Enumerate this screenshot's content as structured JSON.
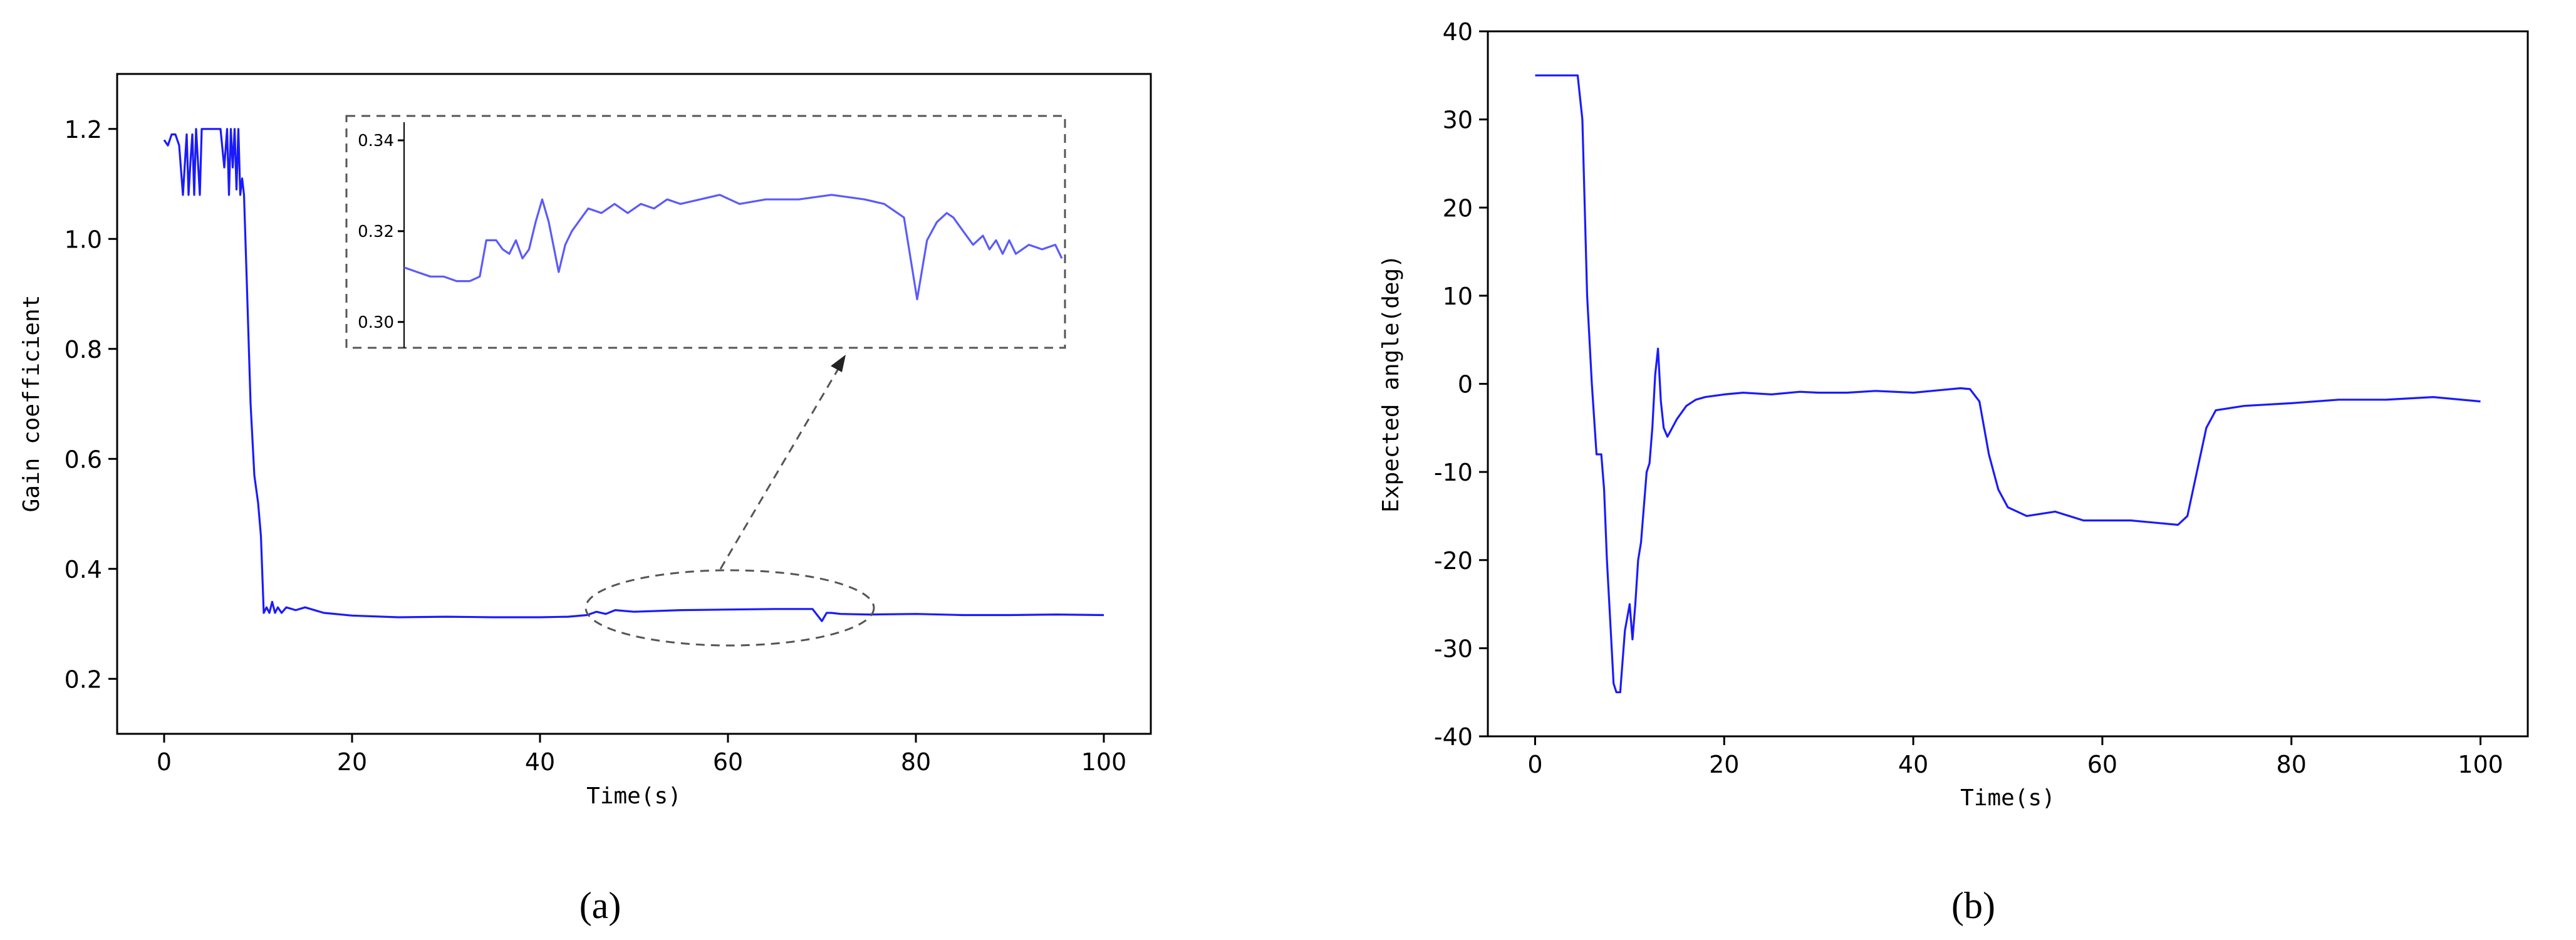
{
  "chart_data": [
    {
      "id": "a",
      "type": "line",
      "caption": "(a)",
      "xlabel": "Time(s)",
      "ylabel": "Gain coefficient",
      "xlim": [
        -5,
        105
      ],
      "ylim": [
        0.1,
        1.3
      ],
      "xticks": [
        "0",
        "20",
        "40",
        "60",
        "80",
        "100"
      ],
      "yticks": [
        "0.2",
        "0.4",
        "0.6",
        "0.8",
        "1.0",
        "1.2"
      ],
      "series": [
        {
          "color": "#1a1aff",
          "x": [
            0,
            0.4,
            0.8,
            1.2,
            1.6,
            2.0,
            2.4,
            2.6,
            2.8,
            3.0,
            3.2,
            3.4,
            3.6,
            3.8,
            4.0,
            4.2,
            4.4,
            4.6,
            5.0,
            6.0,
            6.4,
            6.7,
            6.9,
            7.1,
            7.3,
            7.5,
            7.7,
            7.9,
            8.1,
            8.3,
            8.5,
            8.8,
            9.2,
            9.6,
            10.0,
            10.3,
            10.6,
            10.9,
            11.2,
            11.5,
            11.8,
            12.1,
            12.5,
            13.0,
            14.0,
            15.0,
            17.0,
            20.0,
            25.0,
            30.0,
            35.0,
            40.0,
            43.0,
            45.0,
            46.0,
            47.0,
            48.0,
            50.0,
            55.0,
            60.0,
            65.0,
            69.0,
            70.0,
            70.5,
            71.0,
            72.0,
            75.0,
            80.0,
            85.0,
            90.0,
            95.0,
            100.0
          ],
          "y": [
            1.18,
            1.17,
            1.19,
            1.19,
            1.17,
            1.08,
            1.19,
            1.08,
            1.14,
            1.19,
            1.08,
            1.2,
            1.14,
            1.08,
            1.2,
            1.2,
            1.2,
            1.2,
            1.2,
            1.2,
            1.13,
            1.2,
            1.08,
            1.2,
            1.13,
            1.2,
            1.09,
            1.2,
            1.08,
            1.11,
            1.08,
            0.92,
            0.7,
            0.57,
            0.52,
            0.46,
            0.32,
            0.33,
            0.32,
            0.34,
            0.32,
            0.33,
            0.32,
            0.33,
            0.325,
            0.33,
            0.32,
            0.315,
            0.312,
            0.313,
            0.312,
            0.312,
            0.313,
            0.316,
            0.322,
            0.318,
            0.325,
            0.322,
            0.325,
            0.326,
            0.327,
            0.327,
            0.305,
            0.32,
            0.32,
            0.318,
            0.317,
            0.318,
            0.316,
            0.316,
            0.317,
            0.316
          ]
        }
      ],
      "inset": {
        "yticks": [
          "0.30",
          "0.32",
          "0.34"
        ],
        "ylim": [
          0.295,
          0.344
        ],
        "xlim": [
          0,
          100
        ],
        "x": [
          0,
          2,
          4,
          6,
          8,
          10,
          11.5,
          12.5,
          14,
          15,
          16,
          17,
          18,
          19,
          20,
          21,
          22,
          23.5,
          24.5,
          25.5,
          27,
          28,
          30,
          32,
          34,
          36,
          38,
          40,
          42,
          45,
          48,
          51,
          55,
          60,
          65,
          70,
          73,
          76,
          78,
          79.5,
          81,
          82.5,
          83.5,
          85,
          86.5,
          88,
          89,
          90,
          91,
          92,
          93,
          95,
          97,
          99,
          100
        ],
        "y": [
          0.312,
          0.311,
          0.31,
          0.31,
          0.309,
          0.309,
          0.31,
          0.318,
          0.318,
          0.316,
          0.315,
          0.318,
          0.314,
          0.316,
          0.322,
          0.327,
          0.322,
          0.311,
          0.317,
          0.32,
          0.323,
          0.325,
          0.324,
          0.326,
          0.324,
          0.326,
          0.325,
          0.327,
          0.326,
          0.327,
          0.328,
          0.326,
          0.327,
          0.327,
          0.328,
          0.327,
          0.326,
          0.323,
          0.305,
          0.318,
          0.322,
          0.324,
          0.323,
          0.32,
          0.317,
          0.319,
          0.316,
          0.318,
          0.315,
          0.318,
          0.315,
          0.317,
          0.316,
          0.317,
          0.314
        ]
      }
    },
    {
      "id": "b",
      "type": "line",
      "caption": "(b)",
      "xlabel": "Time(s)",
      "ylabel": "Expected angle(deg)",
      "xlim": [
        -5,
        105
      ],
      "ylim": [
        -40,
        40
      ],
      "xticks": [
        "0",
        "20",
        "40",
        "60",
        "80",
        "100"
      ],
      "yticks": [
        "40",
        "30",
        "20",
        "10",
        "0",
        "-10",
        "-20",
        "-30",
        "-40"
      ],
      "series": [
        {
          "color": "#1a1aff",
          "x": [
            0,
            2,
            4.5,
            5.0,
            5.5,
            6.0,
            6.5,
            7.0,
            7.3,
            7.6,
            8.0,
            8.3,
            8.6,
            9.0,
            9.5,
            10.0,
            10.3,
            10.6,
            10.9,
            11.2,
            11.5,
            11.8,
            12.1,
            12.4,
            12.7,
            13.0,
            13.3,
            13.6,
            14.0,
            14.5,
            15.0,
            16.0,
            17.0,
            18.0,
            20.0,
            22.0,
            25.0,
            28.0,
            30.0,
            33.0,
            36.0,
            40.0,
            43.0,
            45.0,
            46.0,
            47.0,
            48.0,
            49.0,
            50.0,
            52.0,
            55.0,
            58.0,
            60.0,
            63.0,
            66.0,
            68.0,
            69.0,
            70.0,
            71.0,
            72.0,
            75.0,
            80.0,
            85.0,
            90.0,
            95.0,
            100.0
          ],
          "y": [
            35,
            35,
            35,
            30,
            10,
            0,
            -8,
            -8,
            -12,
            -20,
            -28,
            -34,
            -35,
            -35,
            -28,
            -25,
            -29,
            -25,
            -20,
            -18,
            -14,
            -10,
            -9,
            -5,
            1,
            4,
            -2,
            -5,
            -6,
            -5,
            -4,
            -2.5,
            -1.8,
            -1.5,
            -1.2,
            -1.0,
            -1.2,
            -0.9,
            -1.0,
            -1.0,
            -0.8,
            -1.0,
            -0.7,
            -0.5,
            -0.6,
            -2,
            -8,
            -12,
            -14,
            -15,
            -14.5,
            -15.5,
            -15.5,
            -15.5,
            -15.8,
            -16,
            -15,
            -10,
            -5,
            -3,
            -2.5,
            -2.2,
            -1.8,
            -1.8,
            -1.5,
            -2.0
          ]
        }
      ]
    }
  ]
}
